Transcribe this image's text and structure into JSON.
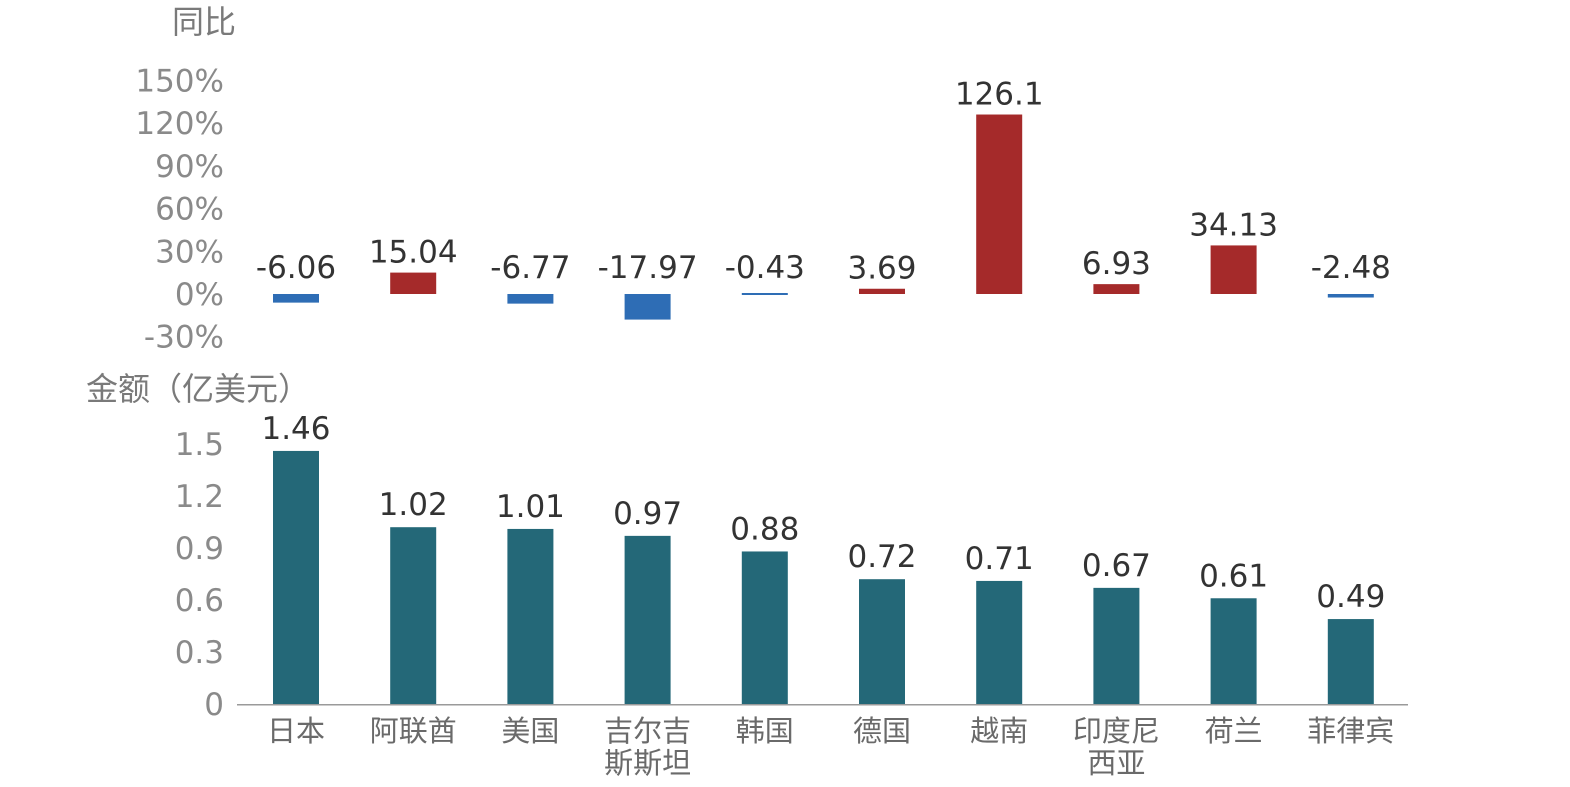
{
  "chart_data": [
    {
      "type": "bar",
      "ylabel": "同比",
      "categories": [
        "日本",
        "阿联酋",
        "美国",
        "吉尔吉斯斯坦",
        "韩国",
        "德国",
        "越南",
        "印度尼西亚",
        "荷兰",
        "菲律宾"
      ],
      "values": [
        -6.06,
        15.04,
        -6.77,
        -17.97,
        -0.43,
        3.69,
        126.1,
        6.93,
        34.13,
        -2.48
      ],
      "value_labels": [
        "-6.06",
        "15.04",
        "-6.77",
        "-17.97",
        "-0.43",
        "3.69",
        "126.1",
        "6.93",
        "34.13",
        "-2.48"
      ],
      "ylim": [
        -30,
        150
      ],
      "yticks": [
        150,
        120,
        90,
        60,
        30,
        0,
        -30
      ],
      "ytick_labels": [
        "150%",
        "120%",
        "90%",
        "60%",
        "30%",
        "0%",
        "-30%"
      ],
      "colors": {
        "positive": "#a52a2a",
        "negative": "#2e6db5"
      },
      "grid": false
    },
    {
      "type": "bar",
      "ylabel": "金额（亿美元）",
      "categories": [
        "日本",
        "阿联酋",
        "美国",
        "吉尔吉斯斯坦",
        "韩国",
        "德国",
        "越南",
        "印度尼西亚",
        "荷兰",
        "菲律宾"
      ],
      "category_lines": [
        [
          "日本"
        ],
        [
          "阿联酋"
        ],
        [
          "美国"
        ],
        [
          "吉尔吉",
          "斯斯坦"
        ],
        [
          "韩国"
        ],
        [
          "德国"
        ],
        [
          "越南"
        ],
        [
          "印度尼",
          "西亚"
        ],
        [
          "荷兰"
        ],
        [
          "菲律宾"
        ]
      ],
      "values": [
        1.46,
        1.02,
        1.01,
        0.97,
        0.88,
        0.72,
        0.71,
        0.67,
        0.61,
        0.49
      ],
      "value_labels": [
        "1.46",
        "1.02",
        "1.01",
        "0.97",
        "0.88",
        "0.72",
        "0.71",
        "0.67",
        "0.61",
        "0.49"
      ],
      "ylim": [
        0,
        1.5
      ],
      "yticks": [
        1.5,
        1.2,
        0.9,
        0.6,
        0.3,
        0
      ],
      "ytick_labels": [
        "1.5",
        "1.2",
        "0.9",
        "0.6",
        "0.3",
        "0"
      ],
      "colors": {
        "bar": "#246878"
      },
      "grid": false
    }
  ]
}
